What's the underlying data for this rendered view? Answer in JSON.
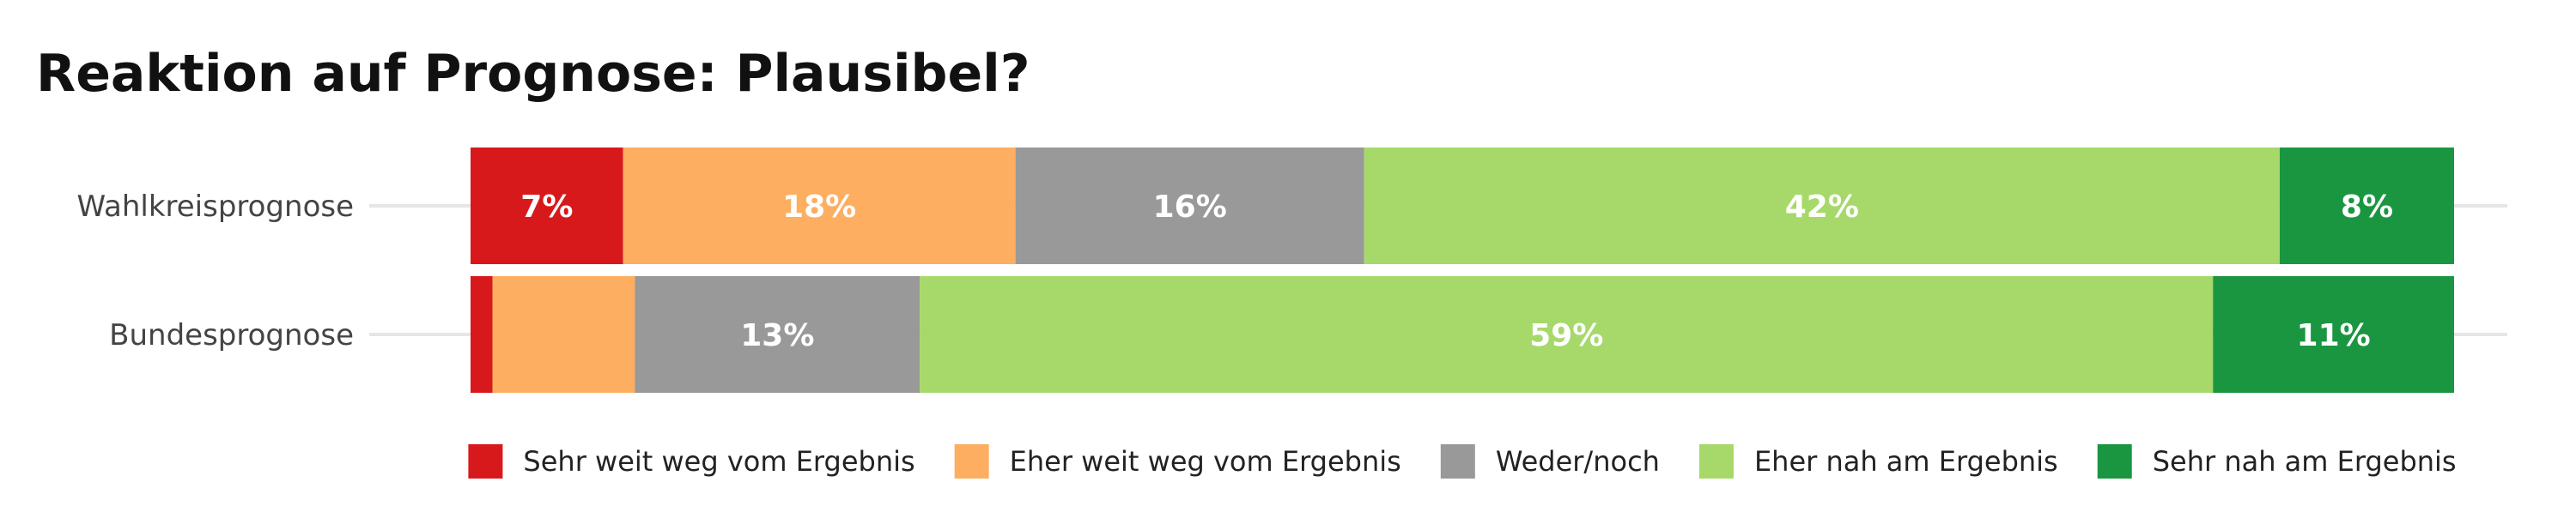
{
  "chart_data": {
    "type": "bar",
    "orientation": "horizontal",
    "stacked": true,
    "title": "Reaktion auf Prognose: Plausibel?",
    "categories": [
      "Wahlkreisprognose",
      "Bundesprognose"
    ],
    "series": [
      {
        "name": "Sehr weit weg vom Ergebnis",
        "color": "#d7191c",
        "values": [
          7,
          1
        ],
        "labels": [
          "7%",
          ""
        ]
      },
      {
        "name": "Eher weit weg vom Ergebnis",
        "color": "#fdae61",
        "values": [
          18,
          6.5
        ],
        "labels": [
          "18%",
          ""
        ]
      },
      {
        "name": "Weder/noch",
        "color": "#999999",
        "values": [
          16,
          13
        ],
        "labels": [
          "16%",
          "13%"
        ]
      },
      {
        "name": "Eher nah am Ergebnis",
        "color": "#a6d96a",
        "values": [
          42,
          59
        ],
        "labels": [
          "42%",
          "59%"
        ]
      },
      {
        "name": "Sehr nah am Ergebnis",
        "color": "#1a9641",
        "values": [
          8,
          11
        ],
        "labels": [
          "8%",
          "11%"
        ]
      }
    ],
    "xlim": [
      0,
      100
    ],
    "grid": true,
    "legend_position": "bottom"
  }
}
